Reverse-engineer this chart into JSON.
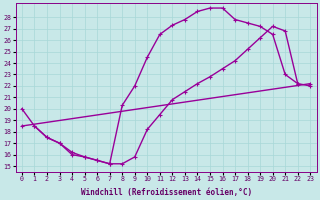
{
  "xlabel": "Windchill (Refroidissement éolien,°C)",
  "background_color": "#c8e8e8",
  "grid_color": "#a8d8d8",
  "line_color": "#990099",
  "xlim": [
    -0.5,
    23.5
  ],
  "ylim": [
    14.5,
    29.2
  ],
  "xticks": [
    0,
    1,
    2,
    3,
    4,
    5,
    6,
    7,
    8,
    9,
    10,
    11,
    12,
    13,
    14,
    15,
    16,
    17,
    18,
    19,
    20,
    21,
    22,
    23
  ],
  "yticks": [
    15,
    16,
    17,
    18,
    19,
    20,
    21,
    22,
    23,
    24,
    25,
    26,
    27,
    28
  ],
  "curve1_x": [
    0,
    1,
    2,
    3,
    4,
    5,
    6,
    7,
    8,
    9,
    10,
    11,
    12,
    13,
    14,
    15,
    16,
    17,
    18,
    19,
    20,
    21,
    22
  ],
  "curve1_y": [
    20.0,
    18.5,
    17.5,
    17.0,
    16.0,
    15.8,
    15.5,
    15.2,
    20.3,
    22.0,
    24.5,
    26.5,
    27.3,
    27.8,
    28.5,
    28.8,
    28.8,
    27.8,
    27.5,
    27.2,
    26.5,
    23.0,
    22.2
  ],
  "curve2_x": [
    1,
    2,
    3,
    4,
    5,
    6,
    7,
    8,
    9,
    10,
    11,
    12,
    13,
    14,
    15,
    16,
    17,
    18,
    19,
    20,
    21,
    22,
    23
  ],
  "curve2_y": [
    18.5,
    17.5,
    17.0,
    16.2,
    15.8,
    15.5,
    15.2,
    15.2,
    15.8,
    18.2,
    19.5,
    20.8,
    21.5,
    22.2,
    22.8,
    23.5,
    24.2,
    25.2,
    26.2,
    27.2,
    26.8,
    22.2,
    22.0
  ],
  "curve3_x": [
    0,
    23
  ],
  "curve3_y": [
    18.5,
    22.2
  ],
  "marker_size": 3.0,
  "linewidth": 1.0
}
